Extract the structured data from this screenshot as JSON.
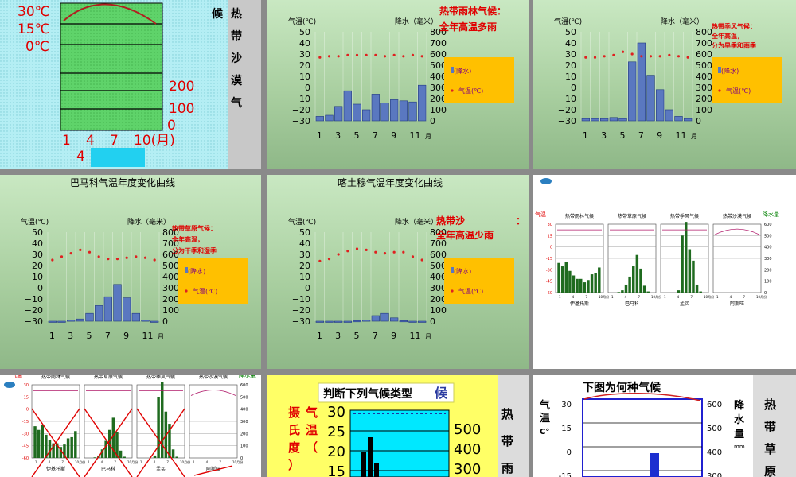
{
  "months": [
    1,
    2,
    3,
    4,
    5,
    6,
    7,
    8,
    9,
    10,
    11,
    12
  ],
  "tick_months": [
    "1",
    "3",
    "5",
    "7",
    "9",
    "11"
  ],
  "unit_month": "月",
  "axis_left": "气温(℃)",
  "axis_right": "降水（毫米）",
  "temp_ticks": [
    "50",
    "40",
    "30",
    "20",
    "10",
    "0",
    "−10",
    "−20",
    "−30"
  ],
  "rain_ticks": [
    "800",
    "700",
    "600",
    "500",
    "400",
    "300",
    "200",
    "100",
    "0"
  ],
  "legend_rain": "(降水)",
  "legend_temp": "气温(℃)",
  "slide1": {
    "temps": [
      "30℃",
      "15℃",
      "0℃"
    ],
    "rains": [
      "200",
      "100",
      "0"
    ],
    "months": [
      "1",
      "4",
      "7",
      "10(月)"
    ],
    "answer_num": "4",
    "vertical_text": [
      "候",
      "热",
      "带",
      "沙",
      "漠",
      "气"
    ]
  },
  "slide2": {
    "label_line1": "热带雨林气候：",
    "label_line2": "全年高温多雨",
    "chart_data": {
      "type": "bar+line",
      "x": [
        1,
        2,
        3,
        4,
        5,
        6,
        7,
        8,
        9,
        10,
        11,
        12
      ],
      "rain": [
        40,
        50,
        130,
        270,
        150,
        100,
        240,
        160,
        190,
        180,
        170,
        320
      ],
      "temp": [
        27,
        28,
        28,
        29,
        29,
        29,
        29,
        28,
        29,
        28,
        29,
        28
      ]
    }
  },
  "slide3": {
    "label_line1": "热带季风气候：",
    "label_line2": "全年高温，",
    "label_line3": "分为旱季和雨季",
    "chart_data": {
      "type": "bar+line",
      "x": [
        1,
        2,
        3,
        4,
        5,
        6,
        7,
        8,
        9,
        10,
        11,
        12
      ],
      "rain": [
        20,
        20,
        20,
        30,
        20,
        530,
        700,
        410,
        280,
        100,
        40,
        20
      ],
      "temp": [
        27,
        27,
        28,
        29,
        32,
        30,
        28,
        28,
        28,
        29,
        28,
        27
      ]
    }
  },
  "slide4": {
    "title": "巴马科气温年度变化曲线",
    "label_line1": "热带草原气候：",
    "label_line2": "全年高温，",
    "label_line3": "分为干季和湿季",
    "chart_data": {
      "type": "bar+line",
      "x": [
        1,
        2,
        3,
        4,
        5,
        6,
        7,
        8,
        9,
        10,
        11,
        12
      ],
      "rain": [
        0,
        0,
        10,
        20,
        70,
        140,
        220,
        330,
        210,
        70,
        10,
        0
      ],
      "temp": [
        25,
        28,
        31,
        34,
        32,
        28,
        26,
        26,
        27,
        28,
        27,
        25
      ]
    }
  },
  "slide5": {
    "title": "喀土穆气温年度变化曲线",
    "label_line1": "热带沙",
    "label_line1b": "：",
    "label_line2": "全年高温少雨",
    "chart_data": {
      "type": "bar+line",
      "x": [
        1,
        2,
        3,
        4,
        5,
        6,
        7,
        8,
        9,
        10,
        11,
        12
      ],
      "rain": [
        0,
        0,
        0,
        0,
        5,
        10,
        50,
        70,
        30,
        5,
        0,
        0
      ],
      "temp": [
        24,
        26,
        30,
        33,
        35,
        34,
        32,
        31,
        32,
        32,
        28,
        25
      ]
    }
  },
  "panel": {
    "left_axis": "气温",
    "right_axis": "降水量",
    "titles": [
      "热带雨林气候",
      "热带草原气候",
      "热带季风气候",
      "热带沙漠气候"
    ],
    "cities": [
      "伊基托斯",
      "巴马科",
      "孟买",
      "阿斯旺"
    ],
    "left_ticks": [
      "30",
      "15",
      "0",
      "-15",
      "-30",
      "-45",
      "-60"
    ],
    "right_ticks": [
      "600",
      "500",
      "400",
      "300",
      "200",
      "100",
      "0"
    ],
    "month_ticks": [
      "1",
      "4",
      "7",
      "10月份"
    ],
    "chart_data": [
      {
        "name": "伊基托斯",
        "rain": [
          260,
          230,
          270,
          190,
          150,
          120,
          120,
          90,
          110,
          160,
          170,
          220
        ]
      },
      {
        "name": "巴马科",
        "rain": [
          0,
          0,
          5,
          20,
          70,
          140,
          230,
          330,
          210,
          60,
          10,
          0
        ]
      },
      {
        "name": "孟买",
        "rain": [
          0,
          0,
          0,
          0,
          20,
          500,
          620,
          380,
          280,
          70,
          10,
          0
        ]
      },
      {
        "name": "阿斯旺",
        "rain": [
          0,
          0,
          0,
          0,
          0,
          0,
          0,
          0,
          0,
          0,
          0,
          0
        ]
      }
    ]
  },
  "slide8": {
    "title": "判断下列气候类型",
    "title_tail": "候",
    "left_ticks": [
      "30",
      "25",
      "20",
      "15"
    ],
    "right_ticks": [
      "500",
      "400",
      "300"
    ],
    "vlabel": [
      "气",
      "温",
      "（",
      "摄",
      "氏",
      "度",
      "）"
    ],
    "vertical_text": [
      "热",
      "带",
      "雨"
    ]
  },
  "slide9": {
    "title": "下图为何种气候",
    "ylabel": [
      "气",
      "温",
      "C°"
    ],
    "left_ticks": [
      "30",
      "15",
      "0",
      "-15"
    ],
    "right_ticks": [
      "600",
      "500",
      "400",
      "300"
    ],
    "rlabel": [
      "降",
      "水",
      "量"
    ],
    "runit": "mm",
    "vertical_text": [
      "热",
      "带",
      "草",
      "原"
    ]
  }
}
